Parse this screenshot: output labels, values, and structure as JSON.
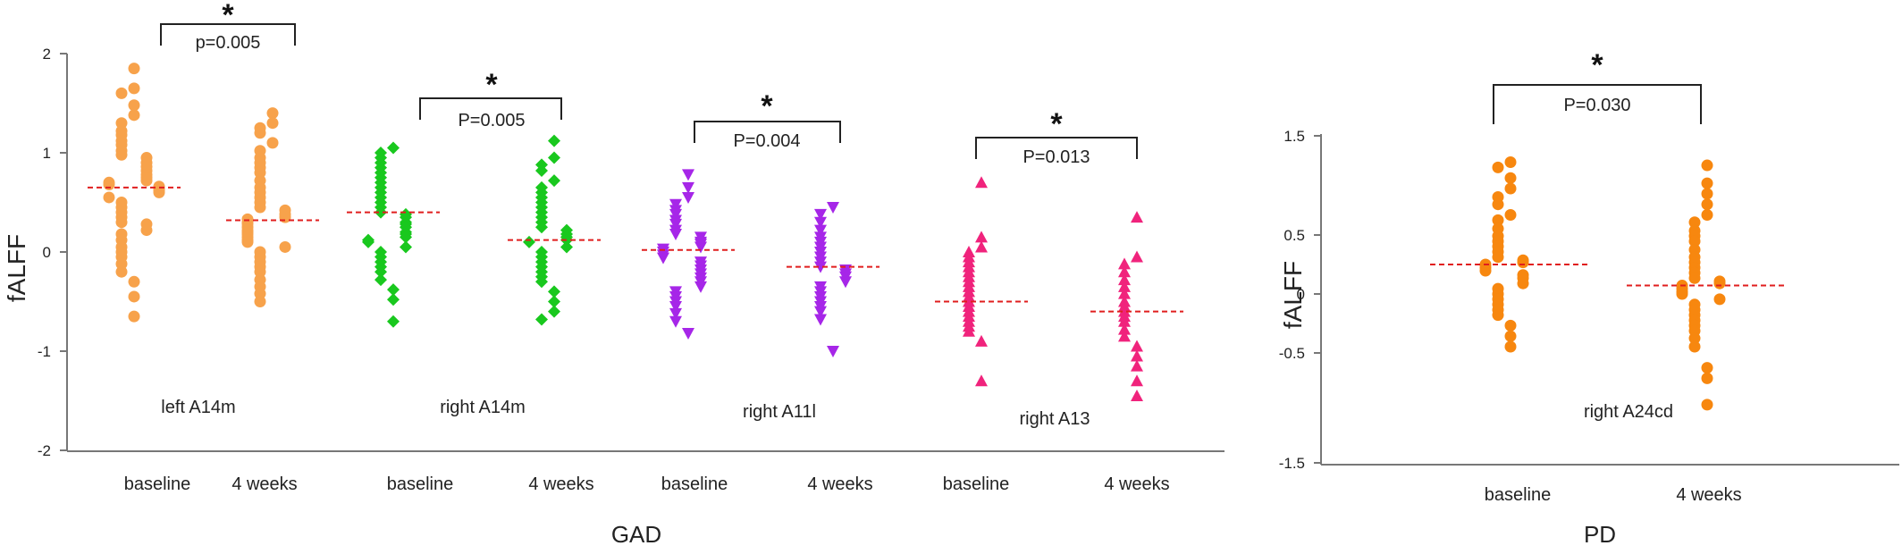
{
  "chart_data": [
    {
      "type": "scatter",
      "title": "GAD",
      "ylabel": "fALFF",
      "ylim": [
        -2,
        2
      ],
      "yticks": [
        2,
        1,
        0,
        -1,
        -2
      ],
      "categories": [
        "baseline",
        "4 weeks",
        "baseline",
        "4 weeks",
        "baseline",
        "4 weeks",
        "baseline",
        "4 weeks"
      ],
      "colors": {
        "left_A14m": "#f7a24b",
        "right_A14m": "#19c81e",
        "right_A11l": "#a626e8",
        "right_A13": "#f0237c",
        "median": "#e01e1e"
      },
      "groups": [
        {
          "region": "left A14m",
          "significance": "*",
          "p_label": "p=0.005",
          "series": [
            {
              "category": "baseline",
              "marker": "circle",
              "median": 0.65,
              "values": [
                1.85,
                1.65,
                1.6,
                1.48,
                1.38,
                1.3,
                1.22,
                1.18,
                1.12,
                1.08,
                1.02,
                0.98,
                0.95,
                0.9,
                0.86,
                0.82,
                0.78,
                0.75,
                0.72,
                0.7,
                0.68,
                0.66,
                0.64,
                0.62,
                0.6,
                0.55,
                0.5,
                0.45,
                0.4,
                0.35,
                0.3,
                0.28,
                0.22,
                0.18,
                0.12,
                0.05,
                0.0,
                -0.05,
                -0.12,
                -0.2,
                -0.3,
                -0.45,
                -0.65
              ]
            },
            {
              "category": "4 weeks",
              "marker": "circle",
              "median": 0.32,
              "values": [
                1.4,
                1.3,
                1.25,
                1.2,
                1.1,
                1.02,
                0.95,
                0.9,
                0.85,
                0.8,
                0.72,
                0.65,
                0.6,
                0.55,
                0.5,
                0.45,
                0.42,
                0.38,
                0.35,
                0.33,
                0.3,
                0.28,
                0.25,
                0.22,
                0.2,
                0.18,
                0.15,
                0.12,
                0.1,
                0.05,
                0.0,
                -0.05,
                -0.1,
                -0.15,
                -0.2,
                -0.28,
                -0.35,
                -0.42,
                -0.5
              ]
            }
          ]
        },
        {
          "region": "right A14m",
          "significance": "*",
          "p_label": "P=0.005",
          "series": [
            {
              "category": "baseline",
              "marker": "diamond",
              "median": 0.4,
              "values": [
                1.05,
                1.0,
                0.95,
                0.9,
                0.85,
                0.8,
                0.75,
                0.7,
                0.65,
                0.6,
                0.55,
                0.5,
                0.45,
                0.4,
                0.38,
                0.35,
                0.3,
                0.28,
                0.25,
                0.2,
                0.18,
                0.15,
                0.12,
                0.1,
                0.05,
                0.0,
                -0.05,
                -0.1,
                -0.15,
                -0.2,
                -0.28,
                -0.38,
                -0.48,
                -0.7
              ]
            },
            {
              "category": "4 weeks",
              "marker": "diamond",
              "median": 0.12,
              "values": [
                1.12,
                0.95,
                0.88,
                0.82,
                0.72,
                0.65,
                0.6,
                0.55,
                0.5,
                0.45,
                0.4,
                0.35,
                0.3,
                0.25,
                0.22,
                0.18,
                0.15,
                0.12,
                0.1,
                0.05,
                0.0,
                -0.05,
                -0.1,
                -0.15,
                -0.2,
                -0.25,
                -0.3,
                -0.4,
                -0.5,
                -0.6,
                -0.68
              ]
            }
          ]
        },
        {
          "region": "right A11l",
          "significance": "*",
          "p_label": "P=0.004",
          "series": [
            {
              "category": "baseline",
              "marker": "triangle-down",
              "median": 0.02,
              "values": [
                0.78,
                0.65,
                0.55,
                0.48,
                0.42,
                0.38,
                0.32,
                0.28,
                0.22,
                0.18,
                0.15,
                0.1,
                0.08,
                0.05,
                0.03,
                0.0,
                -0.03,
                -0.06,
                -0.1,
                -0.14,
                -0.18,
                -0.22,
                -0.26,
                -0.3,
                -0.35,
                -0.4,
                -0.45,
                -0.5,
                -0.55,
                -0.62,
                -0.7,
                -0.82
              ]
            },
            {
              "category": "4 weeks",
              "marker": "triangle-down",
              "median": -0.15,
              "values": [
                0.45,
                0.38,
                0.3,
                0.22,
                0.15,
                0.1,
                0.05,
                0.0,
                -0.05,
                -0.1,
                -0.15,
                -0.18,
                -0.22,
                -0.25,
                -0.3,
                -0.35,
                -0.4,
                -0.45,
                -0.5,
                -0.55,
                -0.6,
                -0.68,
                -1.0
              ]
            }
          ]
        },
        {
          "region": "right A13",
          "significance": "*",
          "p_label": "P=0.013",
          "series": [
            {
              "category": "baseline",
              "marker": "triangle-up",
              "median": -0.5,
              "values": [
                0.7,
                0.15,
                0.05,
                0.0,
                -0.05,
                -0.1,
                -0.15,
                -0.2,
                -0.25,
                -0.3,
                -0.35,
                -0.4,
                -0.45,
                -0.5,
                -0.55,
                -0.6,
                -0.65,
                -0.7,
                -0.75,
                -0.8,
                -0.9,
                -1.3
              ]
            },
            {
              "category": "4 weeks",
              "marker": "triangle-up",
              "median": -0.6,
              "values": [
                0.35,
                -0.05,
                -0.12,
                -0.2,
                -0.28,
                -0.35,
                -0.42,
                -0.5,
                -0.55,
                -0.6,
                -0.65,
                -0.7,
                -0.78,
                -0.85,
                -0.95,
                -1.05,
                -1.15,
                -1.3,
                -1.45
              ]
            }
          ]
        }
      ]
    },
    {
      "type": "scatter",
      "title": "PD",
      "ylabel": "fALFF",
      "ylim": [
        -1.5,
        1.5
      ],
      "yticks": [
        "1.5",
        "0.5",
        "0",
        "-0.5",
        "-1.5"
      ],
      "categories": [
        "baseline",
        "4 weeks"
      ],
      "colors": {
        "points": "#f7870f",
        "median": "#e01e1e"
      },
      "groups": [
        {
          "region": "right A24cd",
          "significance": "*",
          "p_label": "P=0.030",
          "series": [
            {
              "category": "baseline",
              "marker": "circle",
              "median": 0.28,
              "values": [
                1.25,
                1.2,
                1.1,
                1.0,
                0.92,
                0.85,
                0.75,
                0.7,
                0.62,
                0.55,
                0.5,
                0.45,
                0.4,
                0.35,
                0.32,
                0.3,
                0.28,
                0.25,
                0.22,
                0.18,
                0.15,
                0.1,
                0.05,
                0.0,
                -0.05,
                -0.1,
                -0.15,
                -0.2,
                -0.3,
                -0.4,
                -0.5
              ]
            },
            {
              "category": "4 weeks",
              "marker": "circle",
              "median": 0.08,
              "values": [
                1.22,
                1.05,
                0.95,
                0.85,
                0.75,
                0.68,
                0.6,
                0.55,
                0.5,
                0.42,
                0.35,
                0.3,
                0.25,
                0.2,
                0.15,
                0.12,
                0.1,
                0.08,
                0.05,
                0.02,
                0.0,
                -0.05,
                -0.1,
                -0.15,
                -0.2,
                -0.25,
                -0.3,
                -0.35,
                -0.42,
                -0.5,
                -0.7,
                -0.8,
                -1.05
              ]
            }
          ]
        }
      ]
    }
  ]
}
